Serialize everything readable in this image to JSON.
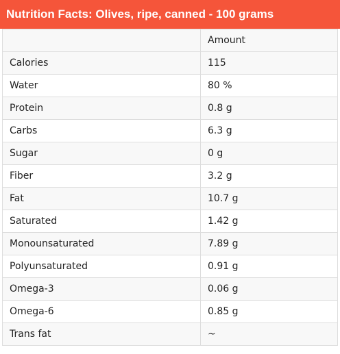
{
  "title": "Nutrition Facts: Olives, ripe, canned - 100 grams",
  "table": {
    "header": {
      "name": "",
      "amount": "Amount"
    },
    "rows": [
      {
        "name": "Calories",
        "amount": "115"
      },
      {
        "name": "Water",
        "amount": "80 %"
      },
      {
        "name": "Protein",
        "amount": "0.8 g"
      },
      {
        "name": "Carbs",
        "amount": "6.3 g"
      },
      {
        "name": "Sugar",
        "amount": "0 g"
      },
      {
        "name": "Fiber",
        "amount": "3.2 g"
      },
      {
        "name": "Fat",
        "amount": "10.7 g"
      },
      {
        "name": "Saturated",
        "amount": "1.42 g"
      },
      {
        "name": "Monounsaturated",
        "amount": "7.89 g"
      },
      {
        "name": "Polyunsaturated",
        "amount": "0.91 g"
      },
      {
        "name": "Omega-3",
        "amount": "0.06 g"
      },
      {
        "name": "Omega-6",
        "amount": "0.85 g"
      },
      {
        "name": "Trans fat",
        "amount": "~"
      }
    ]
  },
  "colors": {
    "title_background": "#f5553a",
    "title_text": "#ffffff",
    "row_stripe": "#f8f8f8",
    "border": "#dddddd"
  }
}
